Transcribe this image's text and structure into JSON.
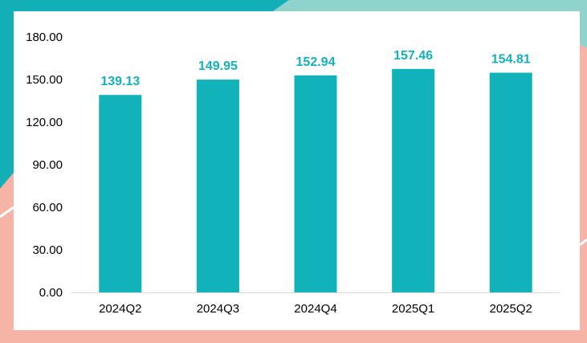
{
  "theme": {
    "bar_color": "#12B2BB",
    "label_color": "#12B2BB",
    "teal_decor": "#12B0B6",
    "mint_decor": "#8FD3CC",
    "pink_decor": "#F6B3A6",
    "axis_color": "#D9D9D9"
  },
  "chart_data": {
    "type": "bar",
    "categories": [
      "2024Q2",
      "2024Q3",
      "2024Q4",
      "2025Q1",
      "2025Q2"
    ],
    "values": [
      139.13,
      149.95,
      152.94,
      157.46,
      154.81
    ],
    "value_labels": [
      "139.13",
      "149.95",
      "152.94",
      "157.46",
      "154.81"
    ],
    "ylim": [
      0,
      180
    ],
    "yticks": [
      "0.00",
      "30.00",
      "60.00",
      "90.00",
      "120.00",
      "150.00",
      "180.00"
    ],
    "ytick_values": [
      0,
      30,
      60,
      90,
      120,
      150,
      180
    ],
    "grid": false,
    "legend": "none"
  }
}
